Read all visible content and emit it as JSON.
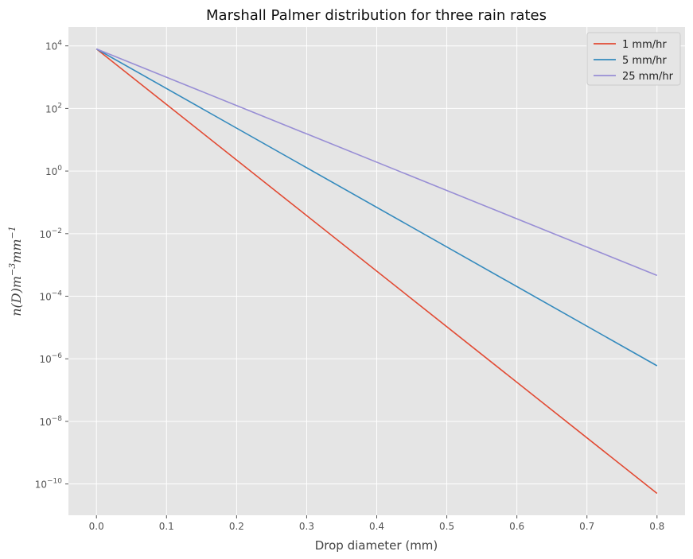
{
  "chart_data": {
    "type": "line",
    "title": "Marshall Palmer distribution for three rain rates",
    "xlabel": "Drop diameter (mm)",
    "ylabel": {
      "base": "n(D)m",
      "exp1": "−3",
      "mid": "mm",
      "exp2": "−1"
    },
    "xlim": [
      -0.04,
      0.84
    ],
    "ylim": [
      1e-11,
      40000.0
    ],
    "yscale": "log",
    "grid": true,
    "legend_position": "top-right",
    "x_ticks": [
      {
        "value": 0.0,
        "label": "0.0"
      },
      {
        "value": 0.1,
        "label": "0.1"
      },
      {
        "value": 0.2,
        "label": "0.2"
      },
      {
        "value": 0.3,
        "label": "0.3"
      },
      {
        "value": 0.4,
        "label": "0.4"
      },
      {
        "value": 0.5,
        "label": "0.5"
      },
      {
        "value": 0.6,
        "label": "0.6"
      },
      {
        "value": 0.7,
        "label": "0.7"
      },
      {
        "value": 0.8,
        "label": "0.8"
      }
    ],
    "y_ticks": [
      {
        "value": 10000.0,
        "base": "10",
        "exp": "4"
      },
      {
        "value": 100.0,
        "base": "10",
        "exp": "2"
      },
      {
        "value": 1.0,
        "base": "10",
        "exp": "0"
      },
      {
        "value": 0.01,
        "base": "10",
        "exp": "−2"
      },
      {
        "value": 0.0001,
        "base": "10",
        "exp": "−4"
      },
      {
        "value": 1e-06,
        "base": "10",
        "exp": "−6"
      },
      {
        "value": 1e-08,
        "base": "10",
        "exp": "−8"
      },
      {
        "value": 1e-10,
        "base": "10",
        "exp": "−10"
      }
    ],
    "series": [
      {
        "name": "1 mm/hr",
        "color": "#E24A33",
        "x": [
          0.0,
          0.8
        ],
        "y": [
          8000,
          5e-11
        ]
      },
      {
        "name": "5 mm/hr",
        "color": "#348ABD",
        "x": [
          0.0,
          0.8
        ],
        "y": [
          8000,
          6e-07
        ]
      },
      {
        "name": "25 mm/hr",
        "color": "#988ED5",
        "x": [
          0.0,
          0.8
        ],
        "y": [
          8000,
          0.00046
        ]
      }
    ]
  }
}
